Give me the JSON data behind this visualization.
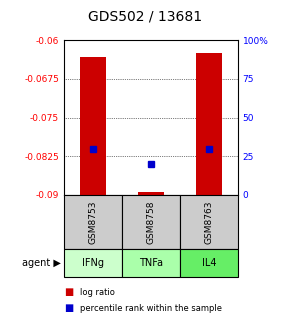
{
  "title": "GDS502 / 13681",
  "samples": [
    "GSM8753",
    "GSM8758",
    "GSM8763"
  ],
  "agents": [
    "IFNg",
    "TNFa",
    "IL4"
  ],
  "log_ratios": [
    -0.0632,
    -0.0895,
    -0.0625
  ],
  "percentile_ranks": [
    30,
    20,
    30
  ],
  "ylim_left": [
    -0.09,
    -0.06
  ],
  "ylim_right": [
    0,
    100
  ],
  "yticks_left": [
    -0.09,
    -0.0825,
    -0.075,
    -0.0675,
    -0.06
  ],
  "yticks_right": [
    0,
    25,
    50,
    75,
    100
  ],
  "ytick_labels_left": [
    "-0.09",
    "-0.0825",
    "-0.075",
    "-0.0675",
    "-0.06"
  ],
  "ytick_labels_right": [
    "0",
    "25",
    "50",
    "75",
    "100%"
  ],
  "bar_color": "#cc0000",
  "dot_color": "#0000cc",
  "agent_bg_colors": [
    "#ccffcc",
    "#aaffaa",
    "#66ee66"
  ],
  "sample_bg_color": "#cccccc",
  "title_fontsize": 10,
  "bar_width": 0.45
}
